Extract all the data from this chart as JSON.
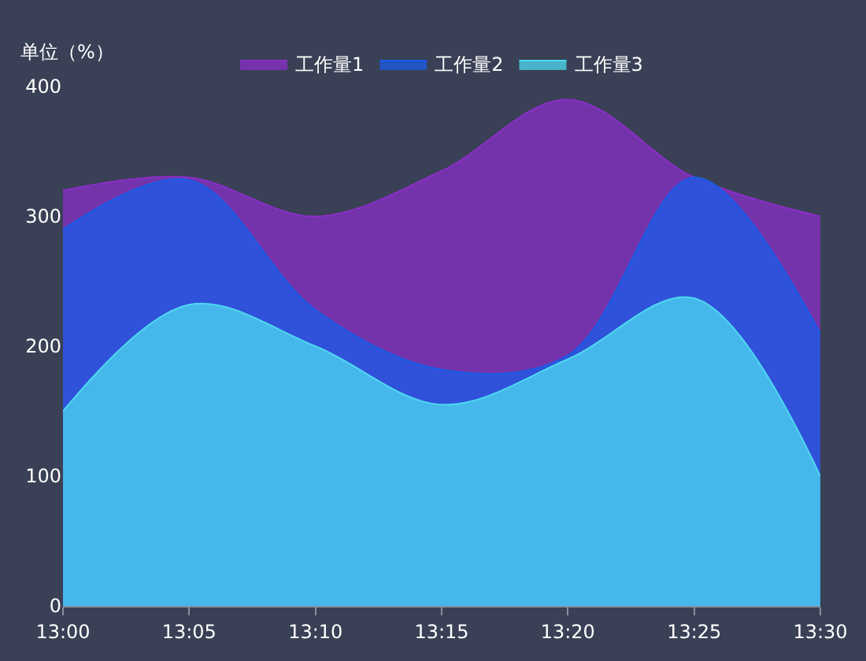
{
  "chart_data": {
    "type": "area",
    "ylabel": "单位（%）",
    "x": [
      13,
      13.0833,
      13.1667,
      13.25,
      13.3333,
      13.4167,
      13.5
    ],
    "xlim": [
      13,
      13.5
    ],
    "xticks": [
      {
        "value": 13,
        "label": "13:00"
      },
      {
        "value": 13.0833,
        "label": "13:05"
      },
      {
        "value": 13.1667,
        "label": "13:10"
      },
      {
        "value": 13.25,
        "label": "13:15"
      },
      {
        "value": 13.3333,
        "label": "13:20"
      },
      {
        "value": 13.4167,
        "label": "13:25"
      },
      {
        "value": 13.5,
        "label": "13:30"
      }
    ],
    "ylim": [
      0,
      400
    ],
    "yticks": [
      0,
      100,
      200,
      300,
      400
    ],
    "grid": false,
    "legend": "top",
    "series": [
      {
        "name": "工作量1",
        "color": "#8a2fc8",
        "values": [
          320,
          330,
          300,
          335,
          390,
          330,
          300
        ]
      },
      {
        "name": "工作量2",
        "color": "#1a5ce8",
        "values": [
          290,
          328,
          228,
          182,
          193,
          330,
          210
        ]
      },
      {
        "name": "工作量3",
        "color": "#4dd9f0",
        "values": [
          150,
          232,
          200,
          155,
          190,
          237,
          100
        ]
      }
    ]
  }
}
